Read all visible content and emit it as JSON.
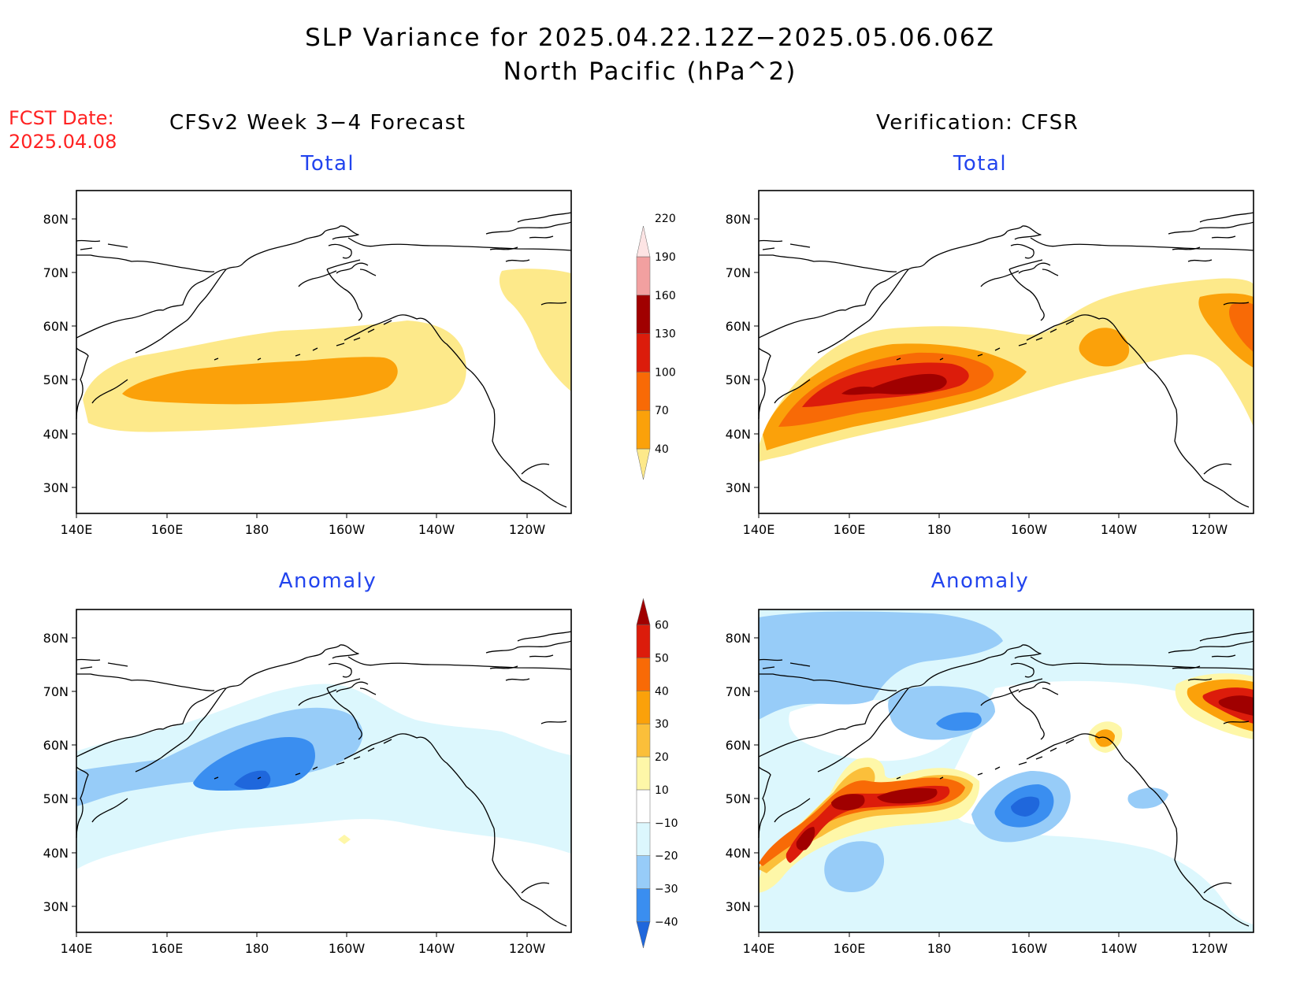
{
  "title": "SLP Variance for 2025.04.22.12Z−2025.05.06.06Z",
  "subtitle": "North Pacific (hPa^2)",
  "fcst_label": "FCST Date:",
  "fcst_date": "2025.04.08",
  "left_title": "CFSv2 Week 3−4 Forecast",
  "right_title": "Verification: CFSR",
  "panels": {
    "top_left_label": "Total",
    "top_right_label": "Total",
    "bottom_left_label": "Anomaly",
    "bottom_right_label": "Anomaly"
  },
  "axes": {
    "lat_labels": [
      "80N",
      "70N",
      "60N",
      "50N",
      "40N",
      "30N"
    ],
    "lon_labels": [
      "140E",
      "160E",
      "180",
      "160W",
      "140W",
      "120W"
    ]
  },
  "colorbar_total": {
    "levels": [
      "40",
      "70",
      "100",
      "130",
      "160",
      "190",
      "220"
    ],
    "colors": [
      "#fde98a",
      "#fba10a",
      "#f86a06",
      "#dc1c0b",
      "#a00000",
      "#f2a0a0",
      "#fde4e4"
    ]
  },
  "colorbar_anomaly": {
    "levels": [
      "−40",
      "−30",
      "−20",
      "−10",
      "10",
      "20",
      "30",
      "40",
      "50",
      "60"
    ],
    "colors": [
      "#1f67dc",
      "#3a8ef0",
      "#97ccf8",
      "#dcf7fd",
      "#ffffff",
      "#fef7a8",
      "#fbbf3a",
      "#fba10a",
      "#f86a06",
      "#dc1c0b",
      "#a00000"
    ]
  }
}
